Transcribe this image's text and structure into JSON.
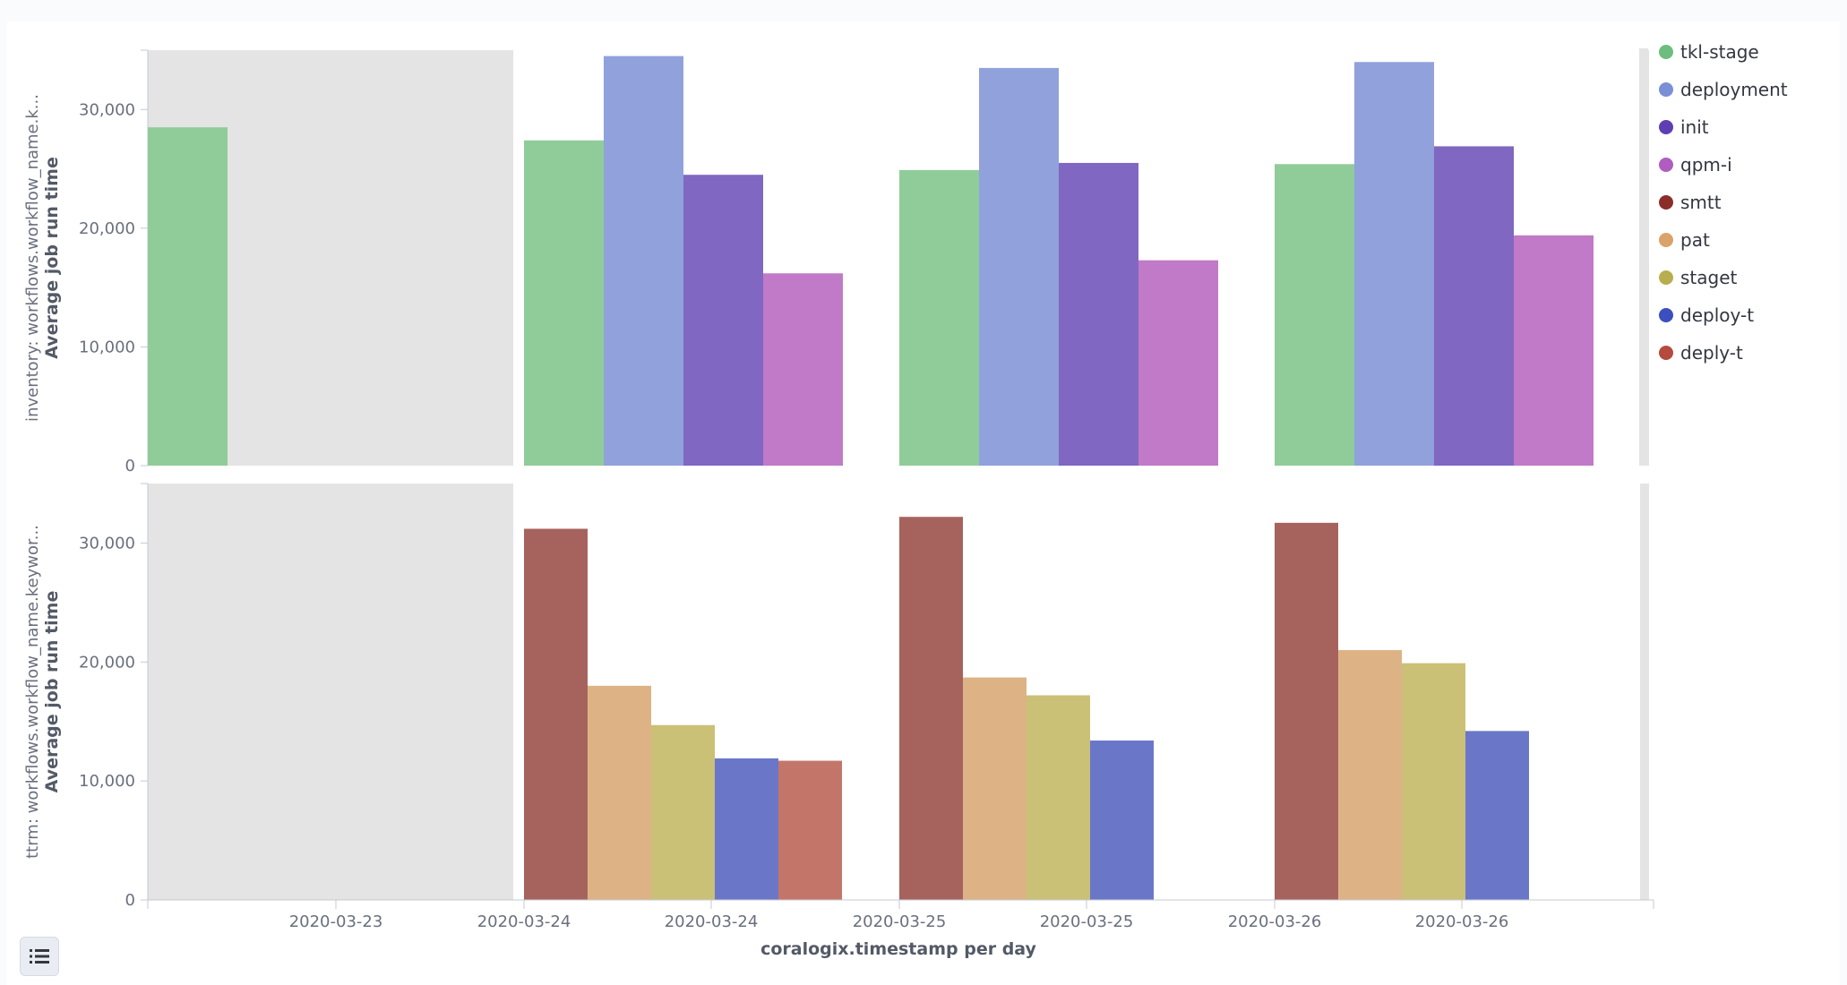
{
  "chart_data": {
    "type": "bar",
    "categories": [
      "2020-03-23",
      "2020-03-24",
      "2020-03-25",
      "2020-03-26"
    ],
    "x_tick_labels": [
      "2020-03-23",
      "2020-03-24",
      "2020-03-24",
      "2020-03-25",
      "2020-03-25",
      "2020-03-26",
      "2020-03-26"
    ],
    "xlabel": "coralogix.timestamp per day",
    "ylabel": "Average job run time",
    "ylim": [
      0,
      35000
    ],
    "y_ticks": [
      0,
      10000,
      20000,
      30000
    ],
    "y_tick_labels": [
      "0",
      "10,000",
      "20,000",
      "30,000"
    ],
    "grid": false,
    "legend_position": "right",
    "legend": [
      {
        "name": "tkl-stage",
        "color": "#6dbe7e"
      },
      {
        "name": "deployment",
        "color": "#7a8fd6"
      },
      {
        "name": "init",
        "color": "#5e3fb3"
      },
      {
        "name": "qpm-i",
        "color": "#b05cc0"
      },
      {
        "name": "smtt",
        "color": "#8b2e2a"
      },
      {
        "name": "pat",
        "color": "#d9a36a"
      },
      {
        "name": "staget",
        "color": "#b8ae4f"
      },
      {
        "name": "deploy-t",
        "color": "#3b4fbf"
      },
      {
        "name": "deply-t",
        "color": "#b54a3e"
      }
    ],
    "panels": [
      {
        "title": "inventory: workflows.workflow_name.k...",
        "series": [
          {
            "name": "tkl-stage",
            "color": "#90cc9a",
            "values": [
              28500,
              27400,
              24900,
              25400
            ]
          },
          {
            "name": "deployment",
            "color": "#91a1db",
            "values": [
              null,
              34500,
              33500,
              34000
            ]
          },
          {
            "name": "init",
            "color": "#8067c1",
            "values": [
              null,
              24500,
              25500,
              26900
            ]
          },
          {
            "name": "qpm-i",
            "color": "#c07ac7",
            "values": [
              null,
              16200,
              17300,
              19400
            ]
          }
        ]
      },
      {
        "title": "ttrm: workflows.workflow_name.keywor...",
        "series": [
          {
            "name": "smtt",
            "color": "#a6635d",
            "values": [
              null,
              31200,
              32200,
              31700
            ]
          },
          {
            "name": "pat",
            "color": "#ddb385",
            "values": [
              null,
              18000,
              18700,
              21000
            ]
          },
          {
            "name": "staget",
            "color": "#cac076",
            "values": [
              null,
              14700,
              17200,
              19900
            ]
          },
          {
            "name": "deploy-t",
            "color": "#6a77c8",
            "values": [
              null,
              11900,
              13400,
              14200
            ]
          },
          {
            "name": "deply-t",
            "color": "#c47569",
            "values": [
              null,
              11700,
              null,
              null
            ]
          }
        ]
      }
    ]
  },
  "legend_toggle": {
    "icon": "list-icon"
  }
}
